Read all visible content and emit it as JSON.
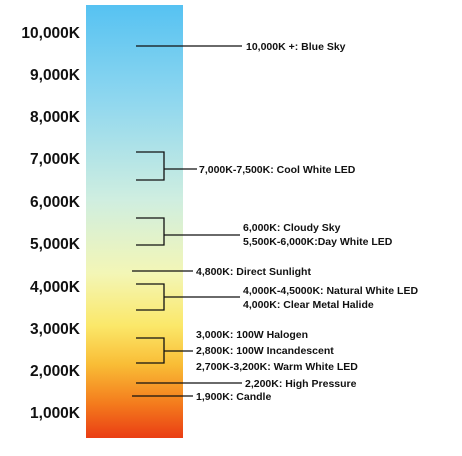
{
  "scale": {
    "unit": "K",
    "min": 1000,
    "max": 10000,
    "tick_labels": [
      "10,000K",
      "9,000K",
      "8,000K",
      "7,000K",
      "6,000K",
      "5,000K",
      "4,000K",
      "3,000K",
      "2,000K",
      "1,000K"
    ],
    "gradient_colors": [
      "#56c2f2",
      "#8fd7ef",
      "#cfeee0",
      "#f3f6b6",
      "#fbe86a",
      "#f9bd36",
      "#f47c1d",
      "#ea3d14"
    ]
  },
  "labels": [
    "10,000K +: Blue Sky",
    "7,000K-7,500K: Cool White LED",
    "6,000K: Cloudy Sky",
    "5,500K-6,000K:Day White LED",
    "4,800K: Direct Sunlight",
    "4,000K-4,5000K: Natural White LED",
    "4,000K: Clear Metal Halide",
    "3,000K: 100W Halogen",
    "2,800K: 100W Incandescent",
    "2,700K-3,200K: Warm White LED",
    "2,200K: High Pressure",
    "1,900K: Candle"
  ]
}
